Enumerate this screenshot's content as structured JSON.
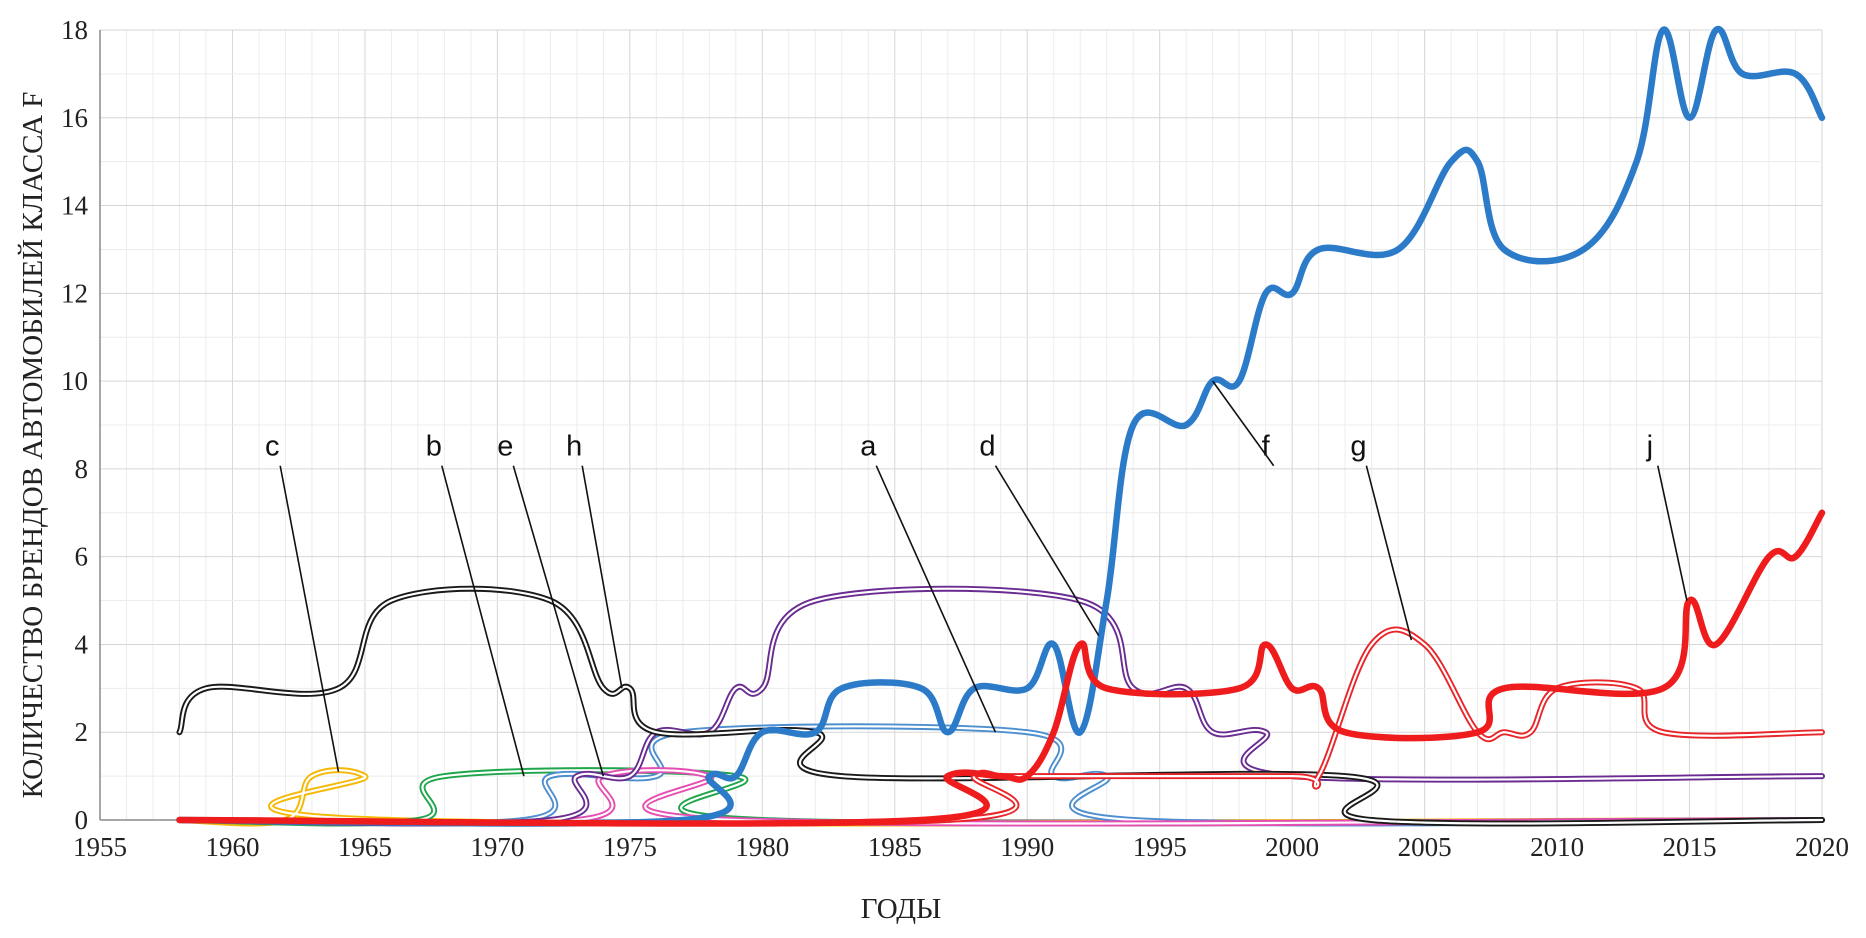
{
  "chart_data": {
    "type": "line",
    "xlabel": "ГОДЫ",
    "ylabel": "КОЛИЧЕСТВО БРЕНДОВ АВТОМОБИЛЕЙ КЛАССА F",
    "xlim": [
      1955,
      2020
    ],
    "ylim": [
      0,
      18
    ],
    "x_ticks": [
      1955,
      1960,
      1965,
      1970,
      1975,
      1980,
      1985,
      1990,
      1995,
      2000,
      2005,
      2010,
      2015,
      2020
    ],
    "y_ticks": [
      0,
      2,
      4,
      6,
      8,
      10,
      12,
      14,
      16,
      18
    ],
    "grid": true,
    "series": [
      {
        "name": "c",
        "color": "#f5b800",
        "style": "double",
        "points": [
          [
            1958,
            0
          ],
          [
            1962,
            0
          ],
          [
            1963,
            1
          ],
          [
            1965,
            1
          ],
          [
            1966,
            0
          ],
          [
            2020,
            0
          ]
        ]
      },
      {
        "name": "b",
        "color": "#1fa54a",
        "style": "double",
        "points": [
          [
            1958,
            0
          ],
          [
            1967,
            0
          ],
          [
            1968,
            1
          ],
          [
            1979,
            1
          ],
          [
            1980,
            0
          ],
          [
            2020,
            0
          ]
        ]
      },
      {
        "name": "e",
        "color": "#4d8fcf",
        "style": "double",
        "points": [
          [
            1958,
            0
          ],
          [
            1971,
            0
          ],
          [
            1972,
            1
          ],
          [
            1976,
            1
          ],
          [
            1977,
            2
          ],
          [
            1990,
            2
          ],
          [
            1991,
            1
          ],
          [
            1993,
            1
          ],
          [
            1994,
            0
          ],
          [
            2020,
            0
          ]
        ]
      },
      {
        "name": "h",
        "color": "#e64db3",
        "style": "double",
        "points": [
          [
            1958,
            0
          ],
          [
            1973,
            0
          ],
          [
            1974,
            1
          ],
          [
            1978,
            1
          ],
          [
            1979,
            0
          ],
          [
            2020,
            0
          ]
        ]
      },
      {
        "name": "d",
        "color": "#6a2c91",
        "style": "double",
        "points": [
          [
            1958,
            0
          ],
          [
            1972,
            0
          ],
          [
            1973,
            1
          ],
          [
            1975,
            1
          ],
          [
            1976,
            2
          ],
          [
            1978,
            2
          ],
          [
            1979,
            3
          ],
          [
            1980,
            3
          ],
          [
            1982,
            5
          ],
          [
            1992,
            5
          ],
          [
            1994,
            3
          ],
          [
            1996,
            3
          ],
          [
            1997,
            2
          ],
          [
            1999,
            2
          ],
          [
            2000,
            1
          ],
          [
            2020,
            1
          ]
        ]
      },
      {
        "name": "a",
        "color": "#1a1a1a",
        "style": "double",
        "points": [
          [
            1958,
            2
          ],
          [
            1959,
            3
          ],
          [
            1964,
            3
          ],
          [
            1966,
            5
          ],
          [
            1972,
            5
          ],
          [
            1974,
            3
          ],
          [
            1975,
            3
          ],
          [
            1976,
            2
          ],
          [
            1982,
            2
          ],
          [
            1983,
            1
          ],
          [
            2002,
            1
          ],
          [
            2003,
            0
          ],
          [
            2020,
            0
          ]
        ]
      },
      {
        "name": "g",
        "color": "#e8262a",
        "style": "double",
        "points": [
          [
            1958,
            0
          ],
          [
            1987,
            0
          ],
          [
            1988,
            1
          ],
          [
            1989,
            1
          ],
          [
            1990,
            1
          ],
          [
            1991,
            1
          ],
          [
            2000,
            1
          ],
          [
            2001,
            1
          ],
          [
            2003,
            4
          ],
          [
            2005,
            4
          ],
          [
            2007,
            2
          ],
          [
            2008,
            2
          ],
          [
            2009,
            2
          ],
          [
            2010,
            3
          ],
          [
            2013,
            3
          ],
          [
            2014,
            2
          ],
          [
            2020,
            2
          ]
        ]
      },
      {
        "name": "f",
        "color": "#2c7bc9",
        "style": "thick",
        "points": [
          [
            1958,
            0
          ],
          [
            1977,
            0
          ],
          [
            1978,
            1
          ],
          [
            1979,
            1
          ],
          [
            1980,
            2
          ],
          [
            1982,
            2
          ],
          [
            1983,
            3
          ],
          [
            1986,
            3
          ],
          [
            1987,
            2
          ],
          [
            1988,
            3
          ],
          [
            1990,
            3
          ],
          [
            1991,
            4
          ],
          [
            1992,
            2
          ],
          [
            1993,
            5
          ],
          [
            1994,
            9
          ],
          [
            1996,
            9
          ],
          [
            1997,
            10
          ],
          [
            1998,
            10
          ],
          [
            1999,
            12
          ],
          [
            2000,
            12
          ],
          [
            2001,
            13
          ],
          [
            2004,
            13
          ],
          [
            2006,
            15
          ],
          [
            2007,
            15
          ],
          [
            2008,
            13
          ],
          [
            2011,
            13
          ],
          [
            2013,
            15
          ],
          [
            2014,
            18
          ],
          [
            2015,
            16
          ],
          [
            2016,
            18
          ],
          [
            2017,
            17
          ],
          [
            2019,
            17
          ],
          [
            2020,
            16
          ]
        ]
      },
      {
        "name": "j",
        "color": "#ee1c1c",
        "style": "thick",
        "points": [
          [
            1958,
            0
          ],
          [
            1986,
            0
          ],
          [
            1987,
            1
          ],
          [
            1989,
            1
          ],
          [
            1990,
            1
          ],
          [
            1991,
            2
          ],
          [
            1992,
            4
          ],
          [
            1993,
            3
          ],
          [
            1998,
            3
          ],
          [
            1999,
            4
          ],
          [
            2000,
            3
          ],
          [
            2001,
            3
          ],
          [
            2002,
            2
          ],
          [
            2007,
            2
          ],
          [
            2008,
            3
          ],
          [
            2014,
            3
          ],
          [
            2015,
            5
          ],
          [
            2016,
            4
          ],
          [
            2018,
            6
          ],
          [
            2019,
            6
          ],
          [
            2020,
            7
          ]
        ]
      }
    ],
    "annotations": [
      {
        "label": "c",
        "text_at": [
          1961.5,
          8.3
        ],
        "tip": [
          1964.0,
          1.1
        ]
      },
      {
        "label": "b",
        "text_at": [
          1967.6,
          8.3
        ],
        "tip": [
          1971.0,
          1.0
        ]
      },
      {
        "label": "e",
        "text_at": [
          1970.3,
          8.3
        ],
        "tip": [
          1974.0,
          1.0
        ]
      },
      {
        "label": "h",
        "text_at": [
          1972.9,
          8.3
        ],
        "tip": [
          1974.7,
          3.0
        ]
      },
      {
        "label": "a",
        "text_at": [
          1984.0,
          8.3
        ],
        "tip": [
          1988.8,
          2.0
        ]
      },
      {
        "label": "d",
        "text_at": [
          1988.5,
          8.3
        ],
        "tip": [
          1992.7,
          4.2
        ]
      },
      {
        "label": "f",
        "text_at": [
          1999.0,
          8.3
        ],
        "tip": [
          1997.0,
          10.0
        ]
      },
      {
        "label": "g",
        "text_at": [
          2002.5,
          8.3
        ],
        "tip": [
          2004.5,
          4.1
        ]
      },
      {
        "label": "j",
        "text_at": [
          2013.5,
          8.3
        ],
        "tip": [
          2014.9,
          5.0
        ]
      }
    ]
  }
}
